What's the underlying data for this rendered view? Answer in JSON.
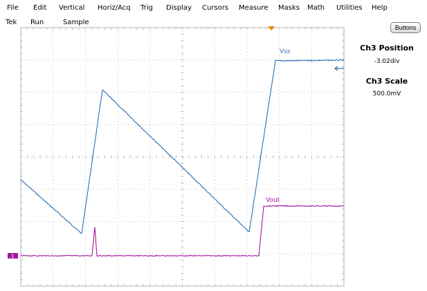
{
  "menu": {
    "items": [
      "File",
      "Edit",
      "Vertical",
      "Horiz/Acq",
      "Trig",
      "Display",
      "Cursors",
      "Measure",
      "Masks",
      "Math",
      "Utilities",
      "Help"
    ]
  },
  "status": {
    "brand": "Tek",
    "run_state": "Run",
    "acq_mode": "Sample"
  },
  "buttons_label": "Buttons",
  "readouts": {
    "position_label": "Ch3 Position",
    "position_value": "-3.02div",
    "scale_label": "Ch3 Scale",
    "scale_value": "500.0mV"
  },
  "traces": {
    "vss_label": "Vss",
    "vout_label": "Vout",
    "vss_color": "#2a6fb5",
    "vout_color": "#a21a9e",
    "channel_marker": "1"
  },
  "colors": {
    "grid": "#b0b0b0",
    "trigger_marker": "#f08a00"
  }
}
